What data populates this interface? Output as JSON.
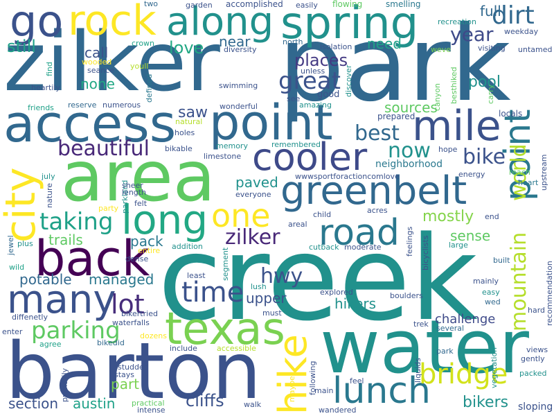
{
  "cloud": {
    "words": [
      {
        "text": "creek",
        "color": "#21918c"
      },
      {
        "text": "zilker",
        "color": "#31688e"
      },
      {
        "text": "park",
        "color": "#31688e"
      },
      {
        "text": "area",
        "color": "#5ec962"
      },
      {
        "text": "barton",
        "color": "#3b528b"
      },
      {
        "text": "water",
        "color": "#21918c"
      },
      {
        "text": "access",
        "color": "#31688e"
      },
      {
        "text": "point",
        "color": "#31688e"
      },
      {
        "text": "spring",
        "color": "#21918c"
      },
      {
        "text": "along",
        "color": "#21918c"
      },
      {
        "text": "rock",
        "color": "#fde725"
      },
      {
        "text": "go",
        "color": "#3b528b"
      },
      {
        "text": "mile",
        "color": "#3b528b"
      },
      {
        "text": "back",
        "color": "#440154"
      },
      {
        "text": "city",
        "color": "#fde725"
      },
      {
        "text": "texas",
        "color": "#7ad151"
      },
      {
        "text": "hike",
        "color": "#fde725"
      },
      {
        "text": "lunch",
        "color": "#2a788e"
      },
      {
        "text": "greenbelt",
        "color": "#31688e"
      },
      {
        "text": "cooler",
        "color": "#3e4a89"
      },
      {
        "text": "road",
        "color": "#2a788e"
      },
      {
        "text": "many",
        "color": "#3b528b"
      },
      {
        "text": "long",
        "color": "#22a884"
      },
      {
        "text": "one",
        "color": "#fde725"
      },
      {
        "text": "bridge",
        "color": "#d2e21b"
      },
      {
        "text": "point",
        "color": "#2a788e"
      },
      {
        "text": "time",
        "color": "#3b528b"
      },
      {
        "text": "lot",
        "color": "#472d7b"
      },
      {
        "text": "hwy",
        "color": "#3b528b"
      },
      {
        "text": "zilker",
        "color": "#482878"
      },
      {
        "text": "parking",
        "color": "#5ec962"
      },
      {
        "text": "taking",
        "color": "#1fa188"
      },
      {
        "text": "beautiful",
        "color": "#482878"
      },
      {
        "text": "best",
        "color": "#31688e"
      },
      {
        "text": "now",
        "color": "#21918c"
      },
      {
        "text": "bike",
        "color": "#3b528b"
      },
      {
        "text": "mountain",
        "color": "#b5de2b"
      },
      {
        "text": "world",
        "color": "#b5de2b"
      },
      {
        "text": "dirt",
        "color": "#31688e"
      },
      {
        "text": "full",
        "color": "#31688e"
      },
      {
        "text": "year",
        "color": "#3e4a89"
      },
      {
        "text": "still",
        "color": "#1fa188"
      },
      {
        "text": "love",
        "color": "#22a884"
      },
      {
        "text": "call",
        "color": "#3b528b"
      },
      {
        "text": "none",
        "color": "#22a884"
      },
      {
        "text": "great",
        "color": "#3b528b"
      },
      {
        "text": "places",
        "color": "#443a83"
      },
      {
        "text": "near",
        "color": "#31688e"
      },
      {
        "text": "need",
        "color": "#1fa188"
      },
      {
        "text": "pool",
        "color": "#21918c"
      },
      {
        "text": "sources",
        "color": "#5ec962"
      },
      {
        "text": "saw",
        "color": "#3b528b"
      },
      {
        "text": "mostly",
        "color": "#84d44b"
      },
      {
        "text": "sense",
        "color": "#5ec962"
      },
      {
        "text": "paved",
        "color": "#21918c"
      },
      {
        "text": "trails",
        "color": "#5ec962"
      },
      {
        "text": "pack",
        "color": "#2a788e"
      },
      {
        "text": "potable",
        "color": "#31688e"
      },
      {
        "text": "managed",
        "color": "#2a788e"
      },
      {
        "text": "upper",
        "color": "#3b528b"
      },
      {
        "text": "hikers",
        "color": "#21918c"
      },
      {
        "text": "challenge",
        "color": "#3e4a89"
      },
      {
        "text": "part",
        "color": "#7ad151"
      },
      {
        "text": "austin",
        "color": "#1fa188"
      },
      {
        "text": "cliffs",
        "color": "#3b528b"
      },
      {
        "text": "bikers",
        "color": "#21918c"
      },
      {
        "text": "section",
        "color": "#3b528b"
      },
      {
        "text": "neighborhood",
        "color": "#2a788e"
      },
      {
        "text": "sloping",
        "color": "#3b528b"
      }
    ],
    "small_words": [
      {
        "text": "two",
        "color": "#31688e"
      },
      {
        "text": "garden",
        "color": "#3b528b"
      },
      {
        "text": "accomplished",
        "color": "#3b528b"
      },
      {
        "text": "easily",
        "color": "#3b528b"
      },
      {
        "text": "flowing",
        "color": "#5ec962"
      },
      {
        "text": "smelling",
        "color": "#2a788e"
      },
      {
        "text": "recreation",
        "color": "#21918c"
      },
      {
        "text": "weekday",
        "color": "#3b528b"
      },
      {
        "text": "crown",
        "color": "#1fa188"
      },
      {
        "text": "diversity",
        "color": "#3b528b"
      },
      {
        "text": "north",
        "color": "#31688e"
      },
      {
        "text": "isolation",
        "color": "#3b528b"
      },
      {
        "text": "weve",
        "color": "#7ad151"
      },
      {
        "text": "visiting",
        "color": "#3b528b"
      },
      {
        "text": "untamed",
        "color": "#3b528b"
      },
      {
        "text": "wooded",
        "color": "#fde725"
      },
      {
        "text": "youll",
        "color": "#b5de2b"
      },
      {
        "text": "seance",
        "color": "#3b528b"
      },
      {
        "text": "unless",
        "color": "#3b528b"
      },
      {
        "text": "find",
        "color": "#1fa188"
      },
      {
        "text": "heartily",
        "color": "#3b528b"
      },
      {
        "text": "swimming",
        "color": "#3b528b"
      },
      {
        "text": "good",
        "color": "#3b528b"
      },
      {
        "text": "discover",
        "color": "#21918c"
      },
      {
        "text": "besthiked",
        "color": "#5ec962"
      },
      {
        "text": "carry",
        "color": "#5ec962"
      },
      {
        "text": "defined",
        "color": "#2a788e"
      },
      {
        "text": "friends",
        "color": "#1fa188"
      },
      {
        "text": "reserve",
        "color": "#31688e"
      },
      {
        "text": "numerous",
        "color": "#3b528b"
      },
      {
        "text": "wonderful",
        "color": "#3b528b"
      },
      {
        "text": "see",
        "color": "#3b528b"
      },
      {
        "text": "amazing",
        "color": "#21918c"
      },
      {
        "text": "prepared",
        "color": "#3b528b"
      },
      {
        "text": "canyon",
        "color": "#5ec962"
      },
      {
        "text": "locals",
        "color": "#3b528b"
      },
      {
        "text": "natural",
        "color": "#b5de2b"
      },
      {
        "text": "holes",
        "color": "#3b528b"
      },
      {
        "text": "memory",
        "color": "#21918c"
      },
      {
        "text": "remembered",
        "color": "#21918c"
      },
      {
        "text": "hope",
        "color": "#3b528b"
      },
      {
        "text": "bikable",
        "color": "#3b528b"
      },
      {
        "text": "limestone",
        "color": "#3b528b"
      },
      {
        "text": "upstream",
        "color": "#3b528b"
      },
      {
        "text": "reach",
        "color": "#5ec962"
      },
      {
        "text": "wwwsportforactioncomlove",
        "color": "#3b528b"
      },
      {
        "text": "parkland",
        "color": "#21918c"
      },
      {
        "text": "july",
        "color": "#21918c"
      },
      {
        "text": "energy",
        "color": "#3b528b"
      },
      {
        "text": "heart",
        "color": "#2a788e"
      },
      {
        "text": "sheer",
        "color": "#3b528b"
      },
      {
        "text": "length",
        "color": "#3b528b"
      },
      {
        "text": "nature",
        "color": "#3b528b"
      },
      {
        "text": "party",
        "color": "#fde725"
      },
      {
        "text": "felt",
        "color": "#3b528b"
      },
      {
        "text": "everyone",
        "color": "#3b528b"
      },
      {
        "text": "acres",
        "color": "#3b528b"
      },
      {
        "text": "child",
        "color": "#3b528b"
      },
      {
        "text": "areal",
        "color": "#3b528b"
      },
      {
        "text": "end",
        "color": "#3b528b"
      },
      {
        "text": "jewel",
        "color": "#31688e"
      },
      {
        "text": "plus",
        "color": "#21918c"
      },
      {
        "text": "entire",
        "color": "#fde725"
      },
      {
        "text": "addition",
        "color": "#21918c"
      },
      {
        "text": "cutback",
        "color": "#21918c"
      },
      {
        "text": "moderate",
        "color": "#3b528b"
      },
      {
        "text": "feelings",
        "color": "#3b528b"
      },
      {
        "text": "bicyclists",
        "color": "#3b528b"
      },
      {
        "text": "large",
        "color": "#21918c"
      },
      {
        "text": "wild",
        "color": "#1fa188"
      },
      {
        "text": "dense",
        "color": "#3b528b"
      },
      {
        "text": "segment",
        "color": "#21918c"
      },
      {
        "text": "built",
        "color": "#31688e"
      },
      {
        "text": "recommendation",
        "color": "#3b528b"
      },
      {
        "text": "least",
        "color": "#3b528b"
      },
      {
        "text": "lush",
        "color": "#21918c"
      },
      {
        "text": "mainly",
        "color": "#3b528b"
      },
      {
        "text": "explored",
        "color": "#3b528b"
      },
      {
        "text": "boulders",
        "color": "#3b528b"
      },
      {
        "text": "easy",
        "color": "#21918c"
      },
      {
        "text": "wed",
        "color": "#31688e"
      },
      {
        "text": "hard",
        "color": "#3b528b"
      },
      {
        "text": "must",
        "color": "#3b528b"
      },
      {
        "text": "bikertried",
        "color": "#3b528b"
      },
      {
        "text": "waterfalls",
        "color": "#3b528b"
      },
      {
        "text": "diffenetly",
        "color": "#3b528b"
      },
      {
        "text": "enter",
        "color": "#3b528b"
      },
      {
        "text": "agree",
        "color": "#1fa188"
      },
      {
        "text": "bikedid",
        "color": "#31688e"
      },
      {
        "text": "dozens",
        "color": "#fde725"
      },
      {
        "text": "trek",
        "color": "#3b528b"
      },
      {
        "text": "several",
        "color": "#31688e"
      },
      {
        "text": "include",
        "color": "#3b528b"
      },
      {
        "text": "accessible",
        "color": "#b5de2b"
      },
      {
        "text": "park",
        "color": "#31688e"
      },
      {
        "text": "vegetation",
        "color": "#21918c"
      },
      {
        "text": "views",
        "color": "#3b528b"
      },
      {
        "text": "gently",
        "color": "#3b528b"
      },
      {
        "text": "studded",
        "color": "#3b528b"
      },
      {
        "text": "stays",
        "color": "#3b528b"
      },
      {
        "text": "primarily",
        "color": "#3b528b"
      },
      {
        "text": "maybe",
        "color": "#fde725"
      },
      {
        "text": "following",
        "color": "#3b528b"
      },
      {
        "text": "liquids",
        "color": "#3b528b"
      },
      {
        "text": "feel",
        "color": "#3b528b"
      },
      {
        "text": "main",
        "color": "#3b528b"
      },
      {
        "text": "packed",
        "color": "#21918c"
      },
      {
        "text": "practical",
        "color": "#5ec962"
      },
      {
        "text": "walk",
        "color": "#3b528b"
      },
      {
        "text": "intense",
        "color": "#3b528b"
      },
      {
        "text": "wandered",
        "color": "#3b528b"
      }
    ]
  }
}
